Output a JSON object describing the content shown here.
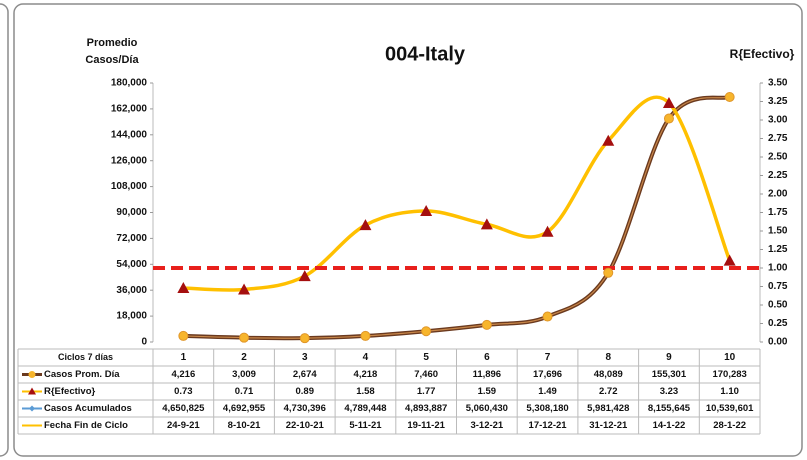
{
  "chart_data": {
    "type": "line",
    "title": "004-Italy",
    "y_label": [
      "Promedio",
      "Casos/Día"
    ],
    "y2_label": "R{Efectivo}",
    "table_header": "Ciclos 7 días",
    "categories": [
      "1",
      "2",
      "3",
      "4",
      "5",
      "6",
      "7",
      "8",
      "9",
      "10"
    ],
    "ylim": [
      0,
      180000
    ],
    "yticks": [
      0,
      {
        "value": 18000,
        "label": "18,000"
      },
      {
        "value": 36000,
        "label": "36,000"
      },
      {
        "value": 54000,
        "label": "54,000"
      },
      {
        "value": 72000,
        "label": "72,000"
      },
      {
        "value": 90000,
        "label": "90,000"
      },
      {
        "value": 108000,
        "label": "108,000"
      },
      {
        "value": 126000,
        "label": "126,000"
      },
      {
        "value": 144000,
        "label": "144,000"
      },
      {
        "value": 162000,
        "label": "162,000"
      },
      {
        "value": 180000,
        "label": "180,000"
      }
    ],
    "y2lim": [
      0,
      3.5
    ],
    "y2ticks": [
      {
        "value": 0,
        "label": "0.00"
      },
      {
        "value": 0.25,
        "label": "0.25"
      },
      {
        "value": 0.5,
        "label": "0.50"
      },
      {
        "value": 0.75,
        "label": "0.75"
      },
      {
        "value": 1,
        "label": "1.00"
      },
      {
        "value": 1.25,
        "label": "1.25"
      },
      {
        "value": 1.5,
        "label": "1.50"
      },
      {
        "value": 1.75,
        "label": "1.75"
      },
      {
        "value": 2,
        "label": "2.00"
      },
      {
        "value": 2.25,
        "label": "2.25"
      },
      {
        "value": 2.5,
        "label": "2.50"
      },
      {
        "value": 2.75,
        "label": "2.75"
      },
      {
        "value": 3,
        "label": "3.00"
      },
      {
        "value": 3.25,
        "label": "3.25"
      },
      {
        "value": 3.5,
        "label": "3.50"
      }
    ],
    "threshold": {
      "value": 1,
      "axis": "y2",
      "color": "#e8201c"
    },
    "series": [
      {
        "name": "Casos Prom. Día",
        "color": "#6b3a1f",
        "marker_color": "#f7b52c",
        "marker": "circle",
        "plotted": true,
        "values": [
          4216,
          3009,
          2674,
          4218,
          7460,
          11896,
          17696,
          48089,
          155301,
          170283
        ],
        "value_labels": [
          "4,216",
          "3,009",
          "2,674",
          "4,218",
          "7,460",
          "11,896",
          "17,696",
          "48,089",
          "155,301",
          "170,283"
        ]
      },
      {
        "name": "R{Efectivo}",
        "color": "#ffc000",
        "marker_color": "#a50f0f",
        "marker": "triangle",
        "axis": "y2",
        "plotted": true,
        "values": [
          0.73,
          0.71,
          0.89,
          1.58,
          1.77,
          1.59,
          1.49,
          2.72,
          3.23,
          1.1
        ],
        "value_labels": [
          "0.73",
          "0.71",
          "0.89",
          "1.58",
          "1.77",
          "1.59",
          "1.49",
          "2.72",
          "3.23",
          "1.10"
        ]
      },
      {
        "name": "Casos Acumulados",
        "color": "#5b9bd5",
        "marker_color": "#5b9bd5",
        "marker": "diamond",
        "plotted": false,
        "values": [
          4650825,
          4692955,
          4730396,
          4789448,
          4893887,
          5060430,
          5308180,
          5981428,
          8155645,
          10539601
        ],
        "value_labels": [
          "4,650,825",
          "4,692,955",
          "4,730,396",
          "4,789,448",
          "4,893,887",
          "5,060,430",
          "5,308,180",
          "5,981,428",
          "8,155,645",
          "10,539,601"
        ]
      },
      {
        "name": "Fecha Fin de Ciclo",
        "color": "#ffc000",
        "marker": "none",
        "plotted": false,
        "values": [
          "24-9-21",
          "8-10-21",
          "22-10-21",
          "5-11-21",
          "19-11-21",
          "3-12-21",
          "17-12-21",
          "31-12-21",
          "14-1-22",
          "28-1-22"
        ]
      }
    ]
  }
}
